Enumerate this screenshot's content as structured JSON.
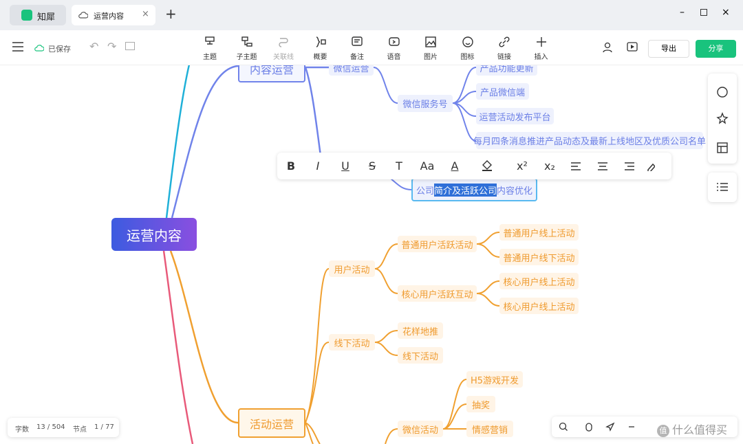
{
  "app": {
    "name": "知犀",
    "tab": "运营内容"
  },
  "toolbar": {
    "saved": "已保存",
    "tools": [
      "主题",
      "子主题",
      "关联线",
      "概要",
      "备注",
      "语音",
      "图片",
      "图标",
      "链接",
      "插入"
    ],
    "export": "导出",
    "share": "分享"
  },
  "format_toolbar": [
    "B",
    "I",
    "U",
    "S",
    "T",
    "Aa",
    "A",
    "x²",
    "x₂"
  ],
  "mindmap": {
    "root": "运营内容",
    "nodes": [
      "内容运营",
      "微信运营",
      "微信服务号",
      "产品功能更新",
      "产品微信端",
      "运营活动发布平台",
      "每月四条消息推进产品动态及最新上线地区及优质公司名单",
      "活动运营",
      "用户活动",
      "普通用户活跃活动",
      "普通用户线上活动",
      "普通用户线下活动",
      "核心用户活跃互动",
      "核心用户线上活动",
      "核心用户线上活动",
      "线下活动",
      "花样地推",
      "线下活动",
      "微信活动",
      "H5游戏开发",
      "抽奖",
      "情感营销"
    ],
    "selected_node": {
      "before": "公司",
      "selected": "简介及活跃公司",
      "after": "内容优化"
    }
  },
  "status": {
    "words_label": "字数",
    "words": "13 / 504",
    "nodes_label": "节点",
    "nodes": "1 / 77"
  },
  "watermark": "什么值得买"
}
